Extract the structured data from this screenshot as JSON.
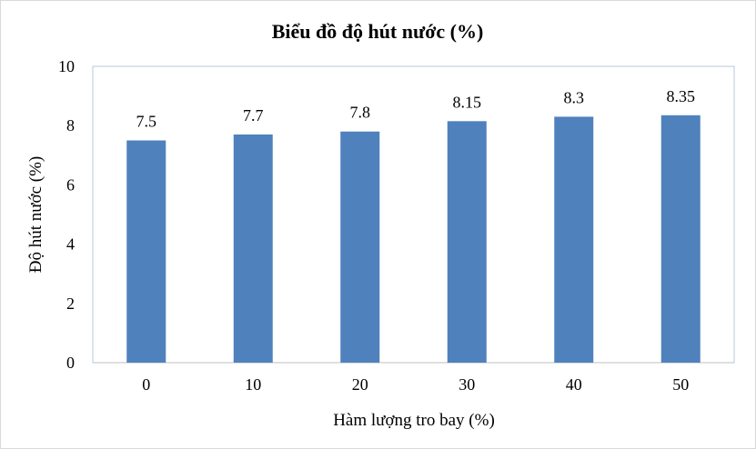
{
  "chart_data": {
    "type": "bar",
    "title": "Biểu đồ độ hút nước (%)",
    "xlabel": "Hàm lượng tro bay (%)",
    "ylabel": "Độ hút nước (%)",
    "categories": [
      "0",
      "10",
      "20",
      "30",
      "40",
      "50"
    ],
    "values": [
      7.5,
      7.7,
      7.8,
      8.15,
      8.3,
      8.35
    ],
    "data_labels": [
      "7.5",
      "7.7",
      "7.8",
      "8.15",
      "8.3",
      "8.35"
    ],
    "ylim": [
      0,
      10
    ],
    "yticks": [
      "0",
      "2",
      "4",
      "6",
      "8",
      "10"
    ],
    "grid": false,
    "legend": "none",
    "bar_color": "#4f81bd",
    "plot_border_color": "#b7c9dc"
  }
}
